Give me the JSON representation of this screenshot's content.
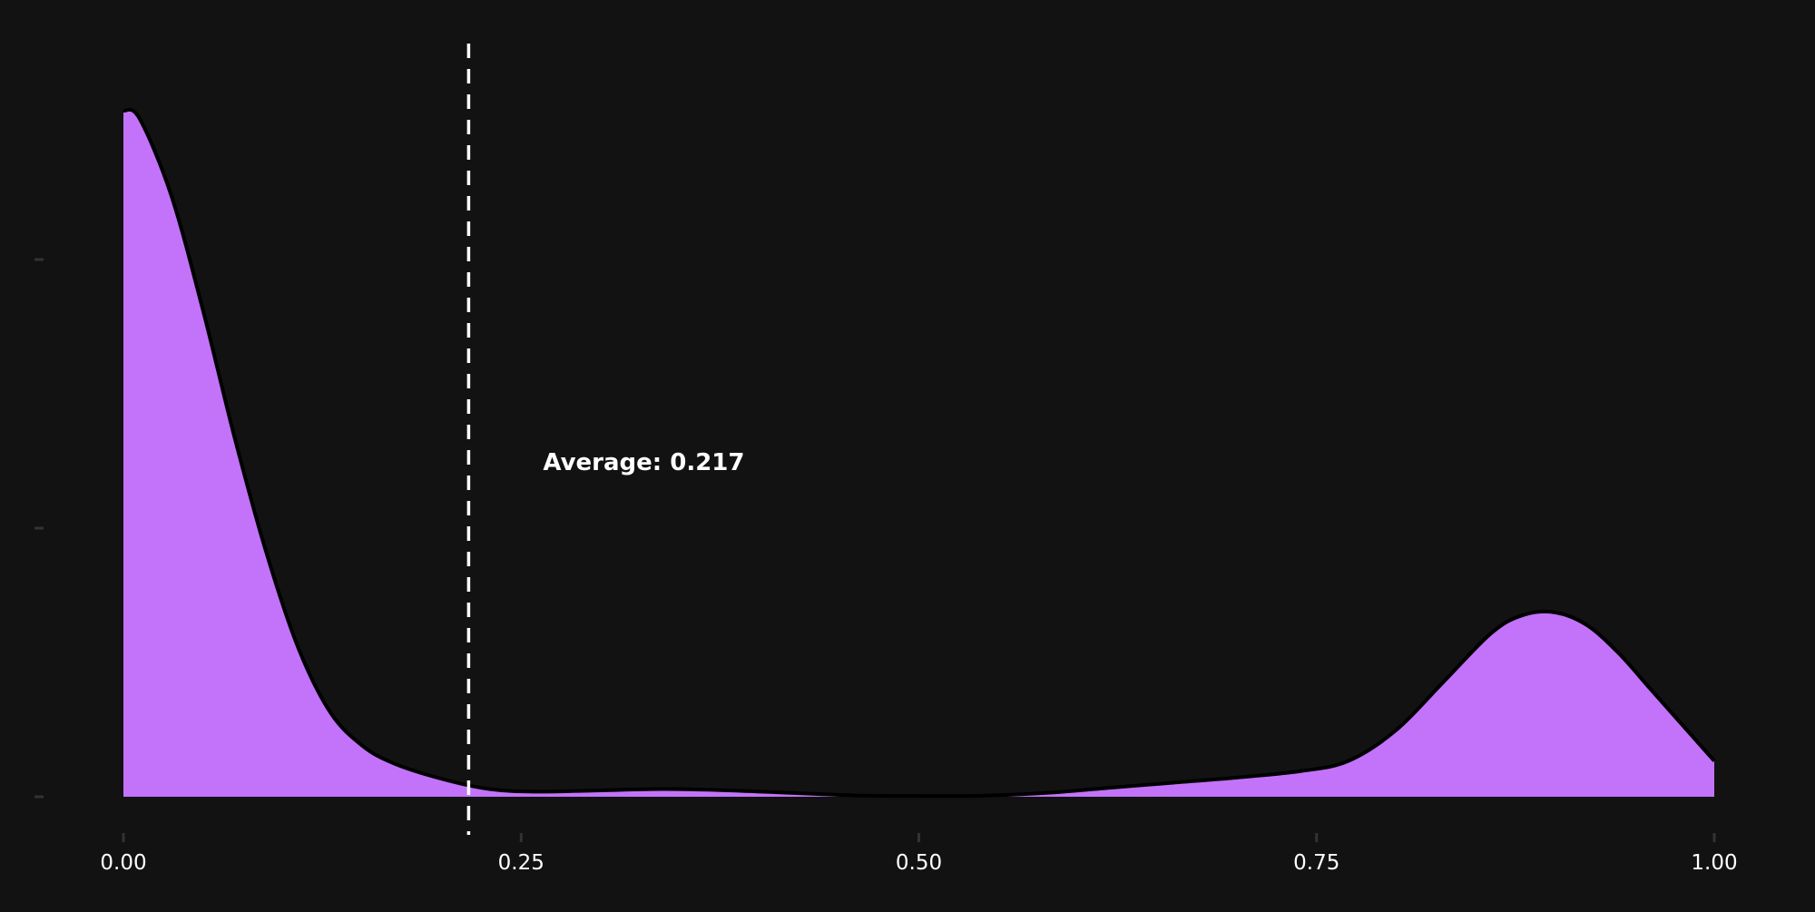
{
  "chart_data": {
    "type": "area",
    "subtype": "density",
    "title": "",
    "xlabel": "",
    "ylabel": "",
    "xlim": [
      0,
      1
    ],
    "ylim": [
      0,
      2.8
    ],
    "grid": false,
    "legend": "none",
    "x_ticks": [
      0,
      0.25,
      0.5,
      0.75,
      1.0
    ],
    "x_tick_labels": [
      "0.00",
      "0.25",
      "0.50",
      "0.75",
      "1.00"
    ],
    "y_ticks": [
      0,
      1,
      2
    ],
    "y_tick_labels": [
      "",
      "",
      ""
    ],
    "series": [
      {
        "x": [
          0,
          0.01,
          0.03,
          0.05,
          0.07,
          0.09,
          0.11,
          0.13,
          0.15,
          0.17,
          0.2,
          0.23,
          0.26,
          0.3,
          0.34,
          0.38,
          0.42,
          0.46,
          0.5,
          0.54,
          0.58,
          0.62,
          0.66,
          0.7,
          0.74,
          0.77,
          0.8,
          0.83,
          0.86,
          0.88,
          0.9,
          0.92,
          0.94,
          0.96,
          0.98,
          1.0
        ],
        "y": [
          2.68,
          2.65,
          2.35,
          1.9,
          1.4,
          0.95,
          0.58,
          0.33,
          0.2,
          0.13,
          0.07,
          0.03,
          0.02,
          0.025,
          0.03,
          0.025,
          0.015,
          0.005,
          0.003,
          0.004,
          0.015,
          0.035,
          0.055,
          0.075,
          0.1,
          0.14,
          0.26,
          0.45,
          0.64,
          0.71,
          0.72,
          0.67,
          0.56,
          0.42,
          0.28,
          0.14
        ]
      }
    ],
    "average": 0.217,
    "annotation": "Average: 0.217",
    "colors": {
      "background": "#121213",
      "fill": "#c373fa",
      "outline": "#000000",
      "text": "#ffffff",
      "tick": "#333333",
      "reference_line": "#ffffff"
    }
  }
}
